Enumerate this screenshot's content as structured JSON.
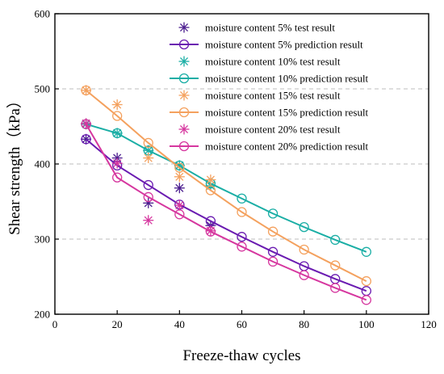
{
  "chart_data": {
    "type": "line",
    "xlabel": "Freeze-thaw cycles",
    "ylabel": "Shear strength（kPa）",
    "xlim": [
      0,
      120
    ],
    "ylim": [
      200,
      600
    ],
    "xticks": [
      0,
      20,
      40,
      60,
      80,
      100,
      120
    ],
    "yticks": [
      200,
      300,
      400,
      500,
      600
    ],
    "grid": "dashed horizontal at 300, 400, 500",
    "legend_position": "top-right",
    "series": [
      {
        "name": "moisture content 5% test result",
        "kind": "test",
        "marker": "asterisk",
        "color": "#4b1d8f",
        "x": [
          10,
          20,
          30,
          40,
          50
        ],
        "y": [
          433,
          408,
          348,
          368,
          318
        ]
      },
      {
        "name": "moisture content 5% prediction result",
        "kind": "prediction",
        "marker": "circle",
        "color": "#6a1bb1",
        "x": [
          10,
          20,
          30,
          40,
          50,
          60,
          70,
          80,
          90,
          100
        ],
        "y": [
          433,
          398,
          372,
          346,
          324,
          303,
          283,
          264,
          247,
          231
        ]
      },
      {
        "name": "moisture content 10% test result",
        "kind": "test",
        "marker": "asterisk",
        "color": "#1aaea5",
        "x": [
          10,
          20,
          30,
          40,
          50
        ],
        "y": [
          453,
          441,
          418,
          398,
          371
        ]
      },
      {
        "name": "moisture content 10% prediction result",
        "kind": "prediction",
        "marker": "circle",
        "color": "#1aaea5",
        "x": [
          10,
          20,
          30,
          40,
          50,
          60,
          70,
          80,
          90,
          100
        ],
        "y": [
          453,
          441,
          418,
          398,
          374,
          354,
          334,
          316,
          299,
          283
        ]
      },
      {
        "name": "moisture content 15% test result",
        "kind": "test",
        "marker": "asterisk",
        "color": "#f4a15e",
        "x": [
          10,
          20,
          30,
          40,
          50
        ],
        "y": [
          498,
          479,
          408,
          383,
          379
        ]
      },
      {
        "name": "moisture content 15% prediction result",
        "kind": "prediction",
        "marker": "circle",
        "color": "#f4a15e",
        "x": [
          10,
          20,
          30,
          40,
          50,
          60,
          70,
          80,
          90,
          100
        ],
        "y": [
          498,
          464,
          428,
          395,
          365,
          336,
          310,
          286,
          265,
          244
        ]
      },
      {
        "name": "moisture content 20% test result",
        "kind": "test",
        "marker": "asterisk",
        "color": "#d6379f",
        "x": [
          10,
          20,
          30,
          40,
          50
        ],
        "y": [
          454,
          401,
          325,
          345,
          311
        ]
      },
      {
        "name": "moisture content 20% prediction result",
        "kind": "prediction",
        "marker": "circle",
        "color": "#d6379f",
        "x": [
          10,
          20,
          30,
          40,
          50,
          60,
          70,
          80,
          90,
          100
        ],
        "y": [
          453,
          382,
          356,
          333,
          310,
          290,
          270,
          252,
          235,
          219
        ]
      }
    ]
  }
}
